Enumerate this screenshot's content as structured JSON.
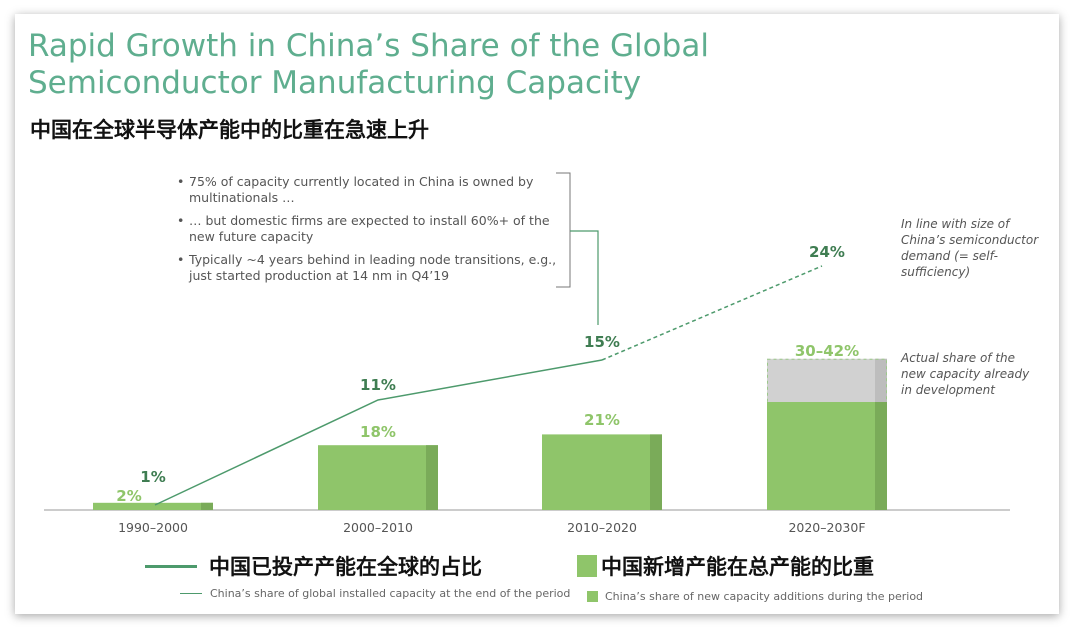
{
  "title": "Rapid Growth in China’s Share of the Global Semiconductor Manufacturing Capacity",
  "subtitle_cn": "中国在全球半导体产能中的比重在急速上升",
  "notes": [
    "75% of capacity currently located in China is owned by multinationals …",
    "… but domestic firms are expected to install 60%+ of the new future capacity",
    "Typically ~4 years behind in leading node transitions, e.g., just started production at 14 nm in Q4’19"
  ],
  "annotation_line": "In line with size of China’s semiconductor demand (= self-sufficiency)",
  "annotation_bar": "Actual share of the new capacity already in development",
  "legend": {
    "line_cn": "中国已投产产能在全球的占比",
    "line_en": "China’s share of global installed capacity at the end of the period",
    "bar_cn": "中国新增产能在总产能的比重",
    "bar_en": "China’s share of new capacity additions during the period"
  },
  "colors": {
    "title": "#5fae8f",
    "bar": "#8fc56a",
    "bar_shade": "#7aab59",
    "bar_range": "#d1d1d1",
    "line": "#4d9a6c",
    "line_label": "#3f7d52",
    "bar_label": "#8fc56a"
  },
  "chart_data": {
    "type": "bar",
    "categories": [
      "1990–2000",
      "2000–2010",
      "2010–2020",
      "2020–2030F"
    ],
    "series": [
      {
        "name": "China’s share of new capacity additions during the period",
        "values": [
          2,
          18,
          21,
          30
        ],
        "upper": [
          null,
          null,
          null,
          42
        ],
        "labels": [
          "2%",
          "18%",
          "21%",
          "30–42%"
        ]
      },
      {
        "name": "China’s share of global installed capacity at the end of the period",
        "values": [
          1,
          11,
          15,
          24
        ],
        "labels": [
          "1%",
          "11%",
          "15%",
          "24%"
        ],
        "forecast_from_index": 2
      }
    ]
  }
}
